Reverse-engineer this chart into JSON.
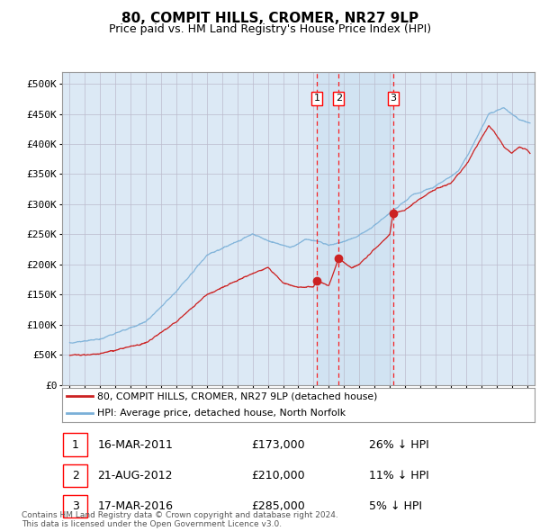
{
  "title": "80, COMPIT HILLS, CROMER, NR27 9LP",
  "subtitle": "Price paid vs. HM Land Registry's House Price Index (HPI)",
  "ylabel_ticks": [
    "£0",
    "£50K",
    "£100K",
    "£150K",
    "£200K",
    "£250K",
    "£300K",
    "£350K",
    "£400K",
    "£450K",
    "£500K"
  ],
  "ytick_values": [
    0,
    50000,
    100000,
    150000,
    200000,
    250000,
    300000,
    350000,
    400000,
    450000,
    500000
  ],
  "ylim": [
    0,
    520000
  ],
  "xlim_start": 1994.5,
  "xlim_end": 2025.5,
  "hpi_color": "#7ab0d8",
  "price_color": "#cc2222",
  "background_color": "#dce9f5",
  "grid_color": "#bbbbcc",
  "sale_dates": [
    2011.21,
    2012.64,
    2016.21
  ],
  "sale_prices": [
    173000,
    210000,
    285000
  ],
  "sale_labels": [
    "1",
    "2",
    "3"
  ],
  "legend_label_price": "80, COMPIT HILLS, CROMER, NR27 9LP (detached house)",
  "legend_label_hpi": "HPI: Average price, detached house, North Norfolk",
  "table_data": [
    [
      "1",
      "16-MAR-2011",
      "£173,000",
      "26% ↓ HPI"
    ],
    [
      "2",
      "21-AUG-2012",
      "£210,000",
      "11% ↓ HPI"
    ],
    [
      "3",
      "17-MAR-2016",
      "£285,000",
      "5% ↓ HPI"
    ]
  ],
  "footnote": "Contains HM Land Registry data © Crown copyright and database right 2024.\nThis data is licensed under the Open Government Licence v3.0.",
  "shaded_region_start": 2011.21,
  "shaded_region_end": 2016.21
}
